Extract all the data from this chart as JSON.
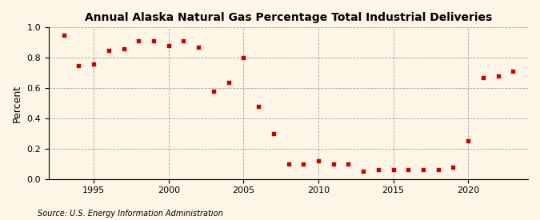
{
  "title": "Annual Alaska Natural Gas Percentage Total Industrial Deliveries",
  "ylabel": "Percent",
  "source": "Source: U.S. Energy Information Administration",
  "background_color": "#fdf5e6",
  "marker_color": "#cc0000",
  "years": [
    1993,
    1994,
    1995,
    1996,
    1997,
    1998,
    1999,
    2000,
    2001,
    2002,
    2003,
    2004,
    2005,
    2006,
    2007,
    2008,
    2009,
    2010,
    2011,
    2012,
    2013,
    2014,
    2015,
    2016,
    2017,
    2018,
    2019,
    2020,
    2021,
    2022,
    2023
  ],
  "values": [
    0.95,
    0.75,
    0.76,
    0.85,
    0.86,
    0.91,
    0.91,
    0.88,
    0.91,
    0.87,
    0.58,
    0.64,
    0.8,
    0.48,
    0.3,
    0.1,
    0.1,
    0.12,
    0.1,
    0.1,
    0.05,
    0.06,
    0.06,
    0.06,
    0.06,
    0.06,
    0.08,
    0.25,
    0.67,
    0.68,
    0.71
  ],
  "xlim": [
    1992,
    2024
  ],
  "ylim": [
    0.0,
    1.0
  ],
  "yticks": [
    0.0,
    0.2,
    0.4,
    0.6,
    0.8,
    1.0
  ],
  "xticks": [
    1995,
    2000,
    2005,
    2010,
    2015,
    2020
  ]
}
